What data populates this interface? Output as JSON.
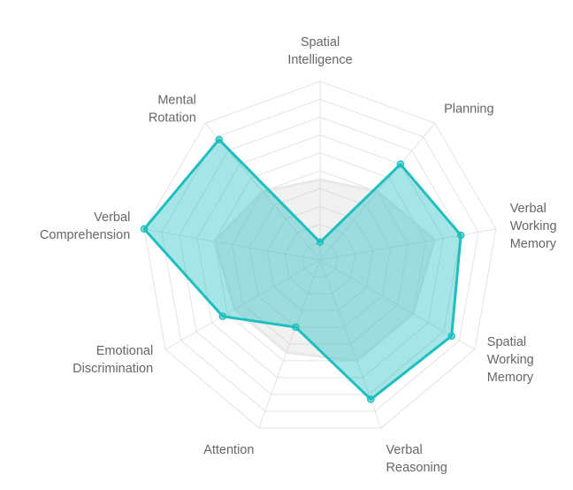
{
  "chart_data": {
    "type": "radar",
    "axes": [
      "Spatial Intelligence",
      "Planning",
      "Verbal Working Memory",
      "Spatial Working Memory",
      "Verbal Reasoning",
      "Attention",
      "Emotional Discrimination",
      "Verbal Comprehension",
      "Mental Rotation"
    ],
    "axis_label_lines": [
      [
        "Spatial",
        "Intelligence"
      ],
      [
        "Planning"
      ],
      [
        "Verbal",
        "Working",
        "Memory"
      ],
      [
        "Spatial",
        "Working",
        "Memory"
      ],
      [
        "Verbal",
        "Reasoning"
      ],
      [
        "Attention"
      ],
      [
        "Emotional",
        "Discrimination"
      ],
      [
        "Verbal",
        "Comprehension"
      ],
      [
        "Mental",
        "Rotation"
      ]
    ],
    "range": [
      0,
      10
    ],
    "grid_levels": 10,
    "grid": true,
    "legend": "none",
    "series": [
      {
        "values": [
          1.0,
          7.0,
          8.0,
          8.5,
          8.3,
          4.0,
          6.3,
          10.0,
          8.8
        ],
        "color": "#1fbfbf",
        "fill": "rgba(31,191,191,0.40)",
        "markers": true
      },
      {
        "values": [
          4.5,
          5.0,
          6.5,
          6.0,
          6.0,
          5.5,
          5.5,
          6.0,
          5.0
        ],
        "color": "#e8e8e8",
        "fill": "rgba(200,200,200,0.25)",
        "markers": false
      }
    ]
  }
}
